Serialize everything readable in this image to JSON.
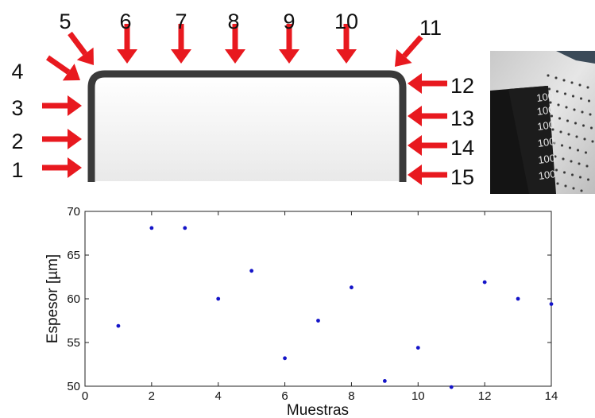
{
  "diagram": {
    "position_labels": [
      "1",
      "2",
      "3",
      "4",
      "5",
      "6",
      "7",
      "8",
      "9",
      "10",
      "11",
      "12",
      "13",
      "14",
      "15"
    ],
    "arrow_color": "#e8191f",
    "profile_color": "#3a3a3a"
  },
  "photo": {
    "marker_text": [
      "100",
      "100",
      "100",
      "100",
      "100",
      "100"
    ]
  },
  "chart_data": {
    "type": "scatter",
    "xlabel": "Muestras",
    "ylabel": "Espesor [µm]",
    "xlim": [
      0,
      14
    ],
    "ylim": [
      50,
      70
    ],
    "xticks": [
      0,
      2,
      4,
      6,
      8,
      10,
      12,
      14
    ],
    "yticks": [
      50,
      55,
      60,
      65,
      70
    ],
    "grid": false,
    "marker_color": "#1414c8",
    "x": [
      1,
      2,
      3,
      4,
      5,
      6,
      7,
      8,
      9,
      10,
      11,
      12,
      13,
      14
    ],
    "y": [
      56.9,
      68.1,
      68.1,
      60.0,
      63.2,
      53.2,
      57.5,
      61.3,
      50.6,
      54.4,
      49.9,
      61.9,
      60.0,
      59.4
    ]
  }
}
